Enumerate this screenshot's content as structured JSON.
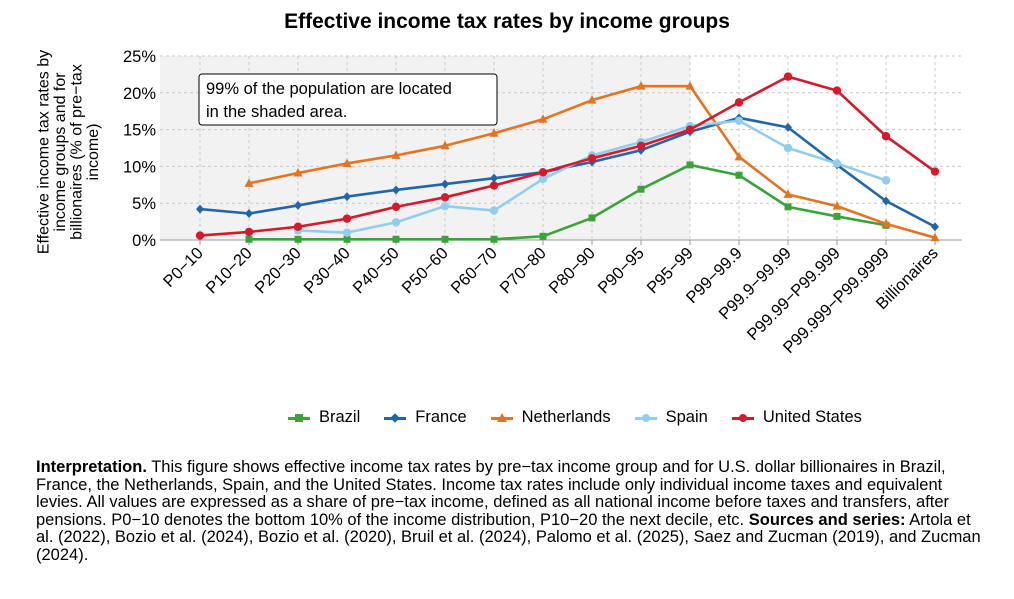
{
  "chart_data": {
    "type": "line",
    "title": "Effective income tax rates by income groups",
    "ylabel": "Effective income tax rates by income groups  and for billionaires (% of pre−tax income)",
    "ylim": [
      0,
      25
    ],
    "yticks": [
      "0%",
      "5%",
      "10%",
      "15%",
      "20%",
      "25%"
    ],
    "grid": true,
    "legend_position": "bottom",
    "categories": [
      "P0−10",
      "P10−20",
      "P20−30",
      "P30−40",
      "P40−50",
      "P50−60",
      "P60−70",
      "P70−80",
      "P80−90",
      "P90−95",
      "P95−99",
      "P99−99.9",
      "P99.9−99.99",
      "P99.99−P99.999",
      "P99.999−P99.9999",
      "Billionaires"
    ],
    "shaded_region": {
      "from": "P0−10",
      "to": "P95−99"
    },
    "annotation": [
      "99% of the population are located",
      "in the shaded area."
    ],
    "series": [
      {
        "name": "Brazil",
        "color": "#3aa33a",
        "marker": "square",
        "values": [
          null,
          0.1,
          0.1,
          0.1,
          0.1,
          0.1,
          0.1,
          0.5,
          3.0,
          6.9,
          10.2,
          8.8,
          4.5,
          3.2,
          2.0,
          null
        ]
      },
      {
        "name": "France",
        "color": "#2166ac",
        "marker": "diamond",
        "values": [
          4.2,
          3.6,
          4.7,
          5.9,
          6.8,
          7.6,
          8.4,
          9.2,
          10.6,
          12.2,
          14.7,
          16.6,
          15.3,
          10.2,
          5.3,
          1.8
        ]
      },
      {
        "name": "Netherlands",
        "color": "#e6731e",
        "marker": "triangle",
        "values": [
          null,
          7.7,
          9.1,
          10.4,
          11.5,
          12.8,
          14.5,
          16.4,
          19.0,
          20.9,
          20.9,
          11.3,
          6.2,
          4.6,
          2.2,
          0.3
        ]
      },
      {
        "name": "Spain",
        "color": "#91cdee",
        "marker": "circle",
        "values": [
          null,
          null,
          1.3,
          1.0,
          2.4,
          4.6,
          4.0,
          8.3,
          11.5,
          13.3,
          15.5,
          16.2,
          12.5,
          10.4,
          8.1,
          null
        ]
      },
      {
        "name": "United States",
        "color": "#d7192b",
        "marker": "circle",
        "values": [
          0.6,
          1.1,
          1.8,
          2.9,
          4.5,
          5.8,
          7.4,
          9.2,
          11.1,
          12.8,
          15.0,
          18.7,
          22.2,
          20.3,
          14.1,
          9.3
        ]
      }
    ]
  },
  "caption": {
    "interp_label": "Interpretation.",
    "interp_text": " This figure shows effective income tax rates by pre−tax income group and for U.S. dollar billionaires in Brazil, France, the Netherlands, Spain, and the United States. Income tax rates include only individual income taxes and equivalent levies. All values are expressed as a share of pre−tax income, defined as all national income before taxes and transfers, after pensions. P0−10 denotes the bottom 10% of the income distribution, P10−20 the next decile, etc.",
    "sources_label": "Sources and series:",
    "sources_text": " Artola et al. (2022), Bozio et al. (2024), Bozio et al. (2020), Bruil et al. (2024), Palomo et al. (2025), Saez and Zucman (2019), and Zucman (2024)."
  }
}
